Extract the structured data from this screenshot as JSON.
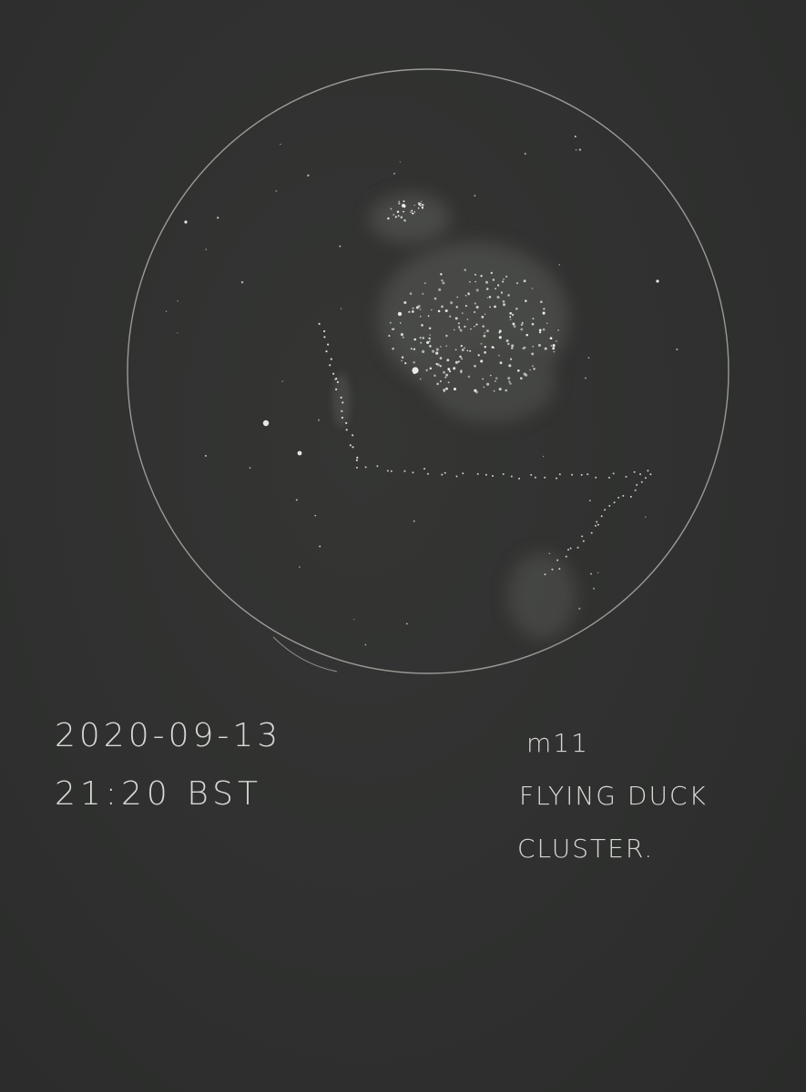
{
  "notes": {
    "date": "2020-09-13",
    "time": "21:20 BST",
    "object": "m11",
    "name_line1": "Flying Duck",
    "name_line2": "Cluster."
  },
  "colors": {
    "paper": "#2f302f",
    "pencil": "#e6e6e2"
  }
}
